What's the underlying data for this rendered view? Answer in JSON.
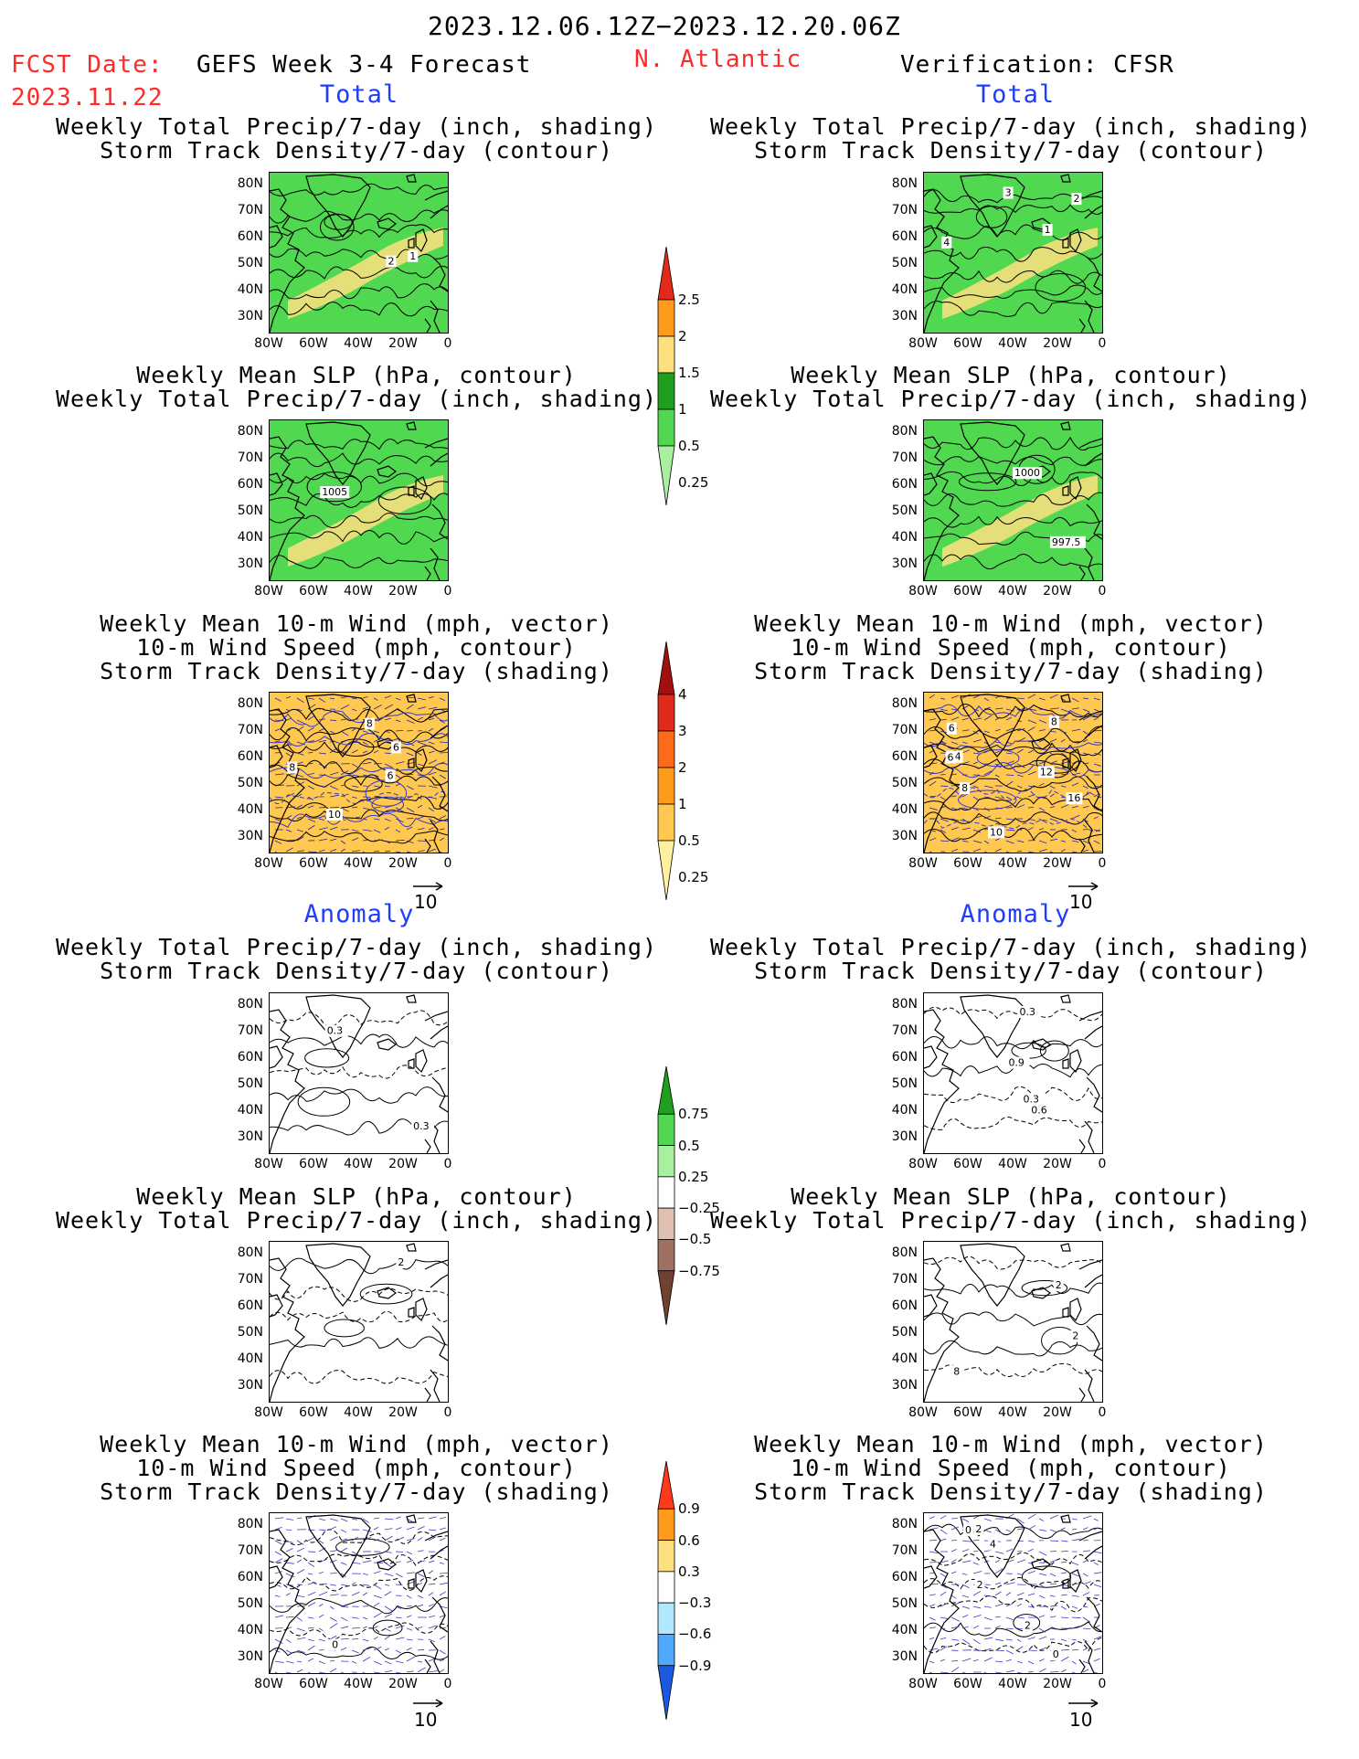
{
  "header": {
    "date_range": "2023.12.06.12Z−2023.12.20.06Z",
    "fcst_label": "FCST Date:",
    "fcst_date": "2023.11.22",
    "forecast_title": "GEFS Week 3-4 Forecast",
    "region": "N. Atlantic",
    "verification": "Verification: CFSR"
  },
  "sections": {
    "total": "Total",
    "anomaly": "Anomaly"
  },
  "panel_titles": {
    "precip_track": [
      "Weekly Total Precip/7-day (inch, shading)",
      "Storm Track Density/7-day (contour)"
    ],
    "slp_precip": [
      "Weekly Mean SLP (hPa, contour)",
      "Weekly Total Precip/7-day (inch, shading)"
    ],
    "wind_track": [
      "Weekly Mean 10-m Wind (mph, vector)",
      "10-m Wind Speed (mph, contour)",
      "Storm Track Density/7-day (shading)"
    ]
  },
  "axes": {
    "lat_ticks": [
      "80N",
      "70N",
      "60N",
      "50N",
      "40N",
      "30N"
    ],
    "lon_ticks": [
      "80W",
      "60W",
      "40W",
      "20W",
      "0"
    ]
  },
  "vector_ref": "10",
  "colorbars": {
    "total_precip": {
      "labels": [
        "2.5",
        "2",
        "1.5",
        "1",
        "0.5",
        "0.25"
      ],
      "colors": [
        "#e02a1a",
        "#ff9a1a",
        "#ffe080",
        "#1ea01e",
        "#50d850",
        "#a8f0a0"
      ]
    },
    "total_track": {
      "labels": [
        "4",
        "3",
        "2",
        "1",
        "0.5",
        "0.25"
      ],
      "colors": [
        "#a01010",
        "#e02a1a",
        "#ff6a1a",
        "#ff9a1a",
        "#ffc850",
        "#fff0a0"
      ]
    },
    "anom_precip": {
      "labels": [
        "0.75",
        "0.5",
        "0.25",
        "−0.25",
        "−0.5",
        "−0.75"
      ],
      "colors": [
        "#1ea01e",
        "#50d850",
        "#a8f0a0",
        "#ffffff",
        "#e0c0b0",
        "#a07060",
        "#704030"
      ]
    },
    "anom_track": {
      "labels": [
        "0.9",
        "0.6",
        "0.3",
        "−0.3",
        "−0.6",
        "−0.9"
      ],
      "colors": [
        "#ff3a1a",
        "#ff9a1a",
        "#ffe080",
        "#ffffff",
        "#b0e8ff",
        "#50a8ff",
        "#1a5ae0"
      ]
    }
  },
  "contour_labels": {
    "p1_left": [
      "2",
      "1"
    ],
    "p1_right": [
      "4",
      "3",
      "1",
      "2"
    ],
    "p2_left": [
      "1005"
    ],
    "p2_right": [
      "1000",
      "997.5"
    ],
    "p3_left": [
      "6",
      "8",
      "6",
      "8",
      "10"
    ],
    "p3_right": [
      "6",
      "8",
      "10",
      "12",
      "16",
      "14",
      "6",
      "8"
    ],
    "p4_left": [
      "0.3",
      "0.3"
    ],
    "p4_right": [
      "0.3",
      "0.9",
      "0.6",
      "0.3"
    ],
    "p5_left": [
      "2"
    ],
    "p5_right": [
      "8",
      "2",
      "2"
    ],
    "p6_left": [
      "0"
    ],
    "p6_right": [
      "2",
      "0",
      "2",
      "4",
      "2",
      "0"
    ]
  }
}
